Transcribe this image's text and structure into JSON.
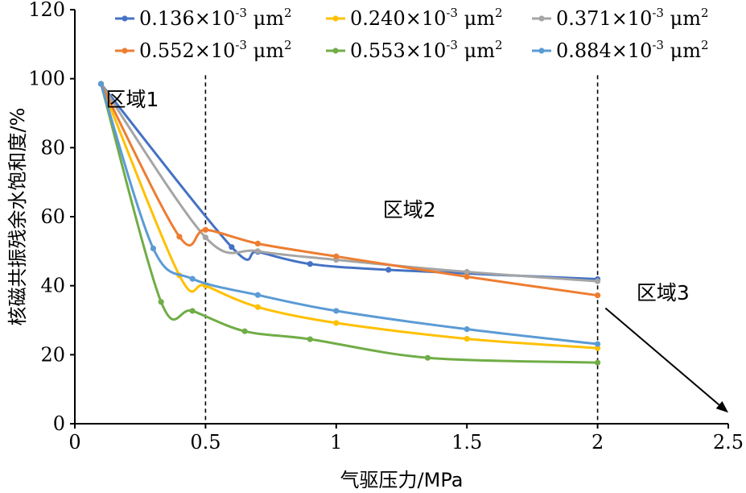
{
  "chart_data": {
    "type": "line",
    "xlabel": "气驱压力/MPa",
    "ylabel": "核磁共振残余水饱和度/%",
    "xlim": [
      0,
      2.5
    ],
    "ylim": [
      0,
      120
    ],
    "xticks": [
      0,
      0.5,
      1,
      1.5,
      2,
      2.5
    ],
    "xtick_labels": [
      "0",
      "0.5",
      "1",
      "1.5",
      "2",
      "2.5"
    ],
    "yticks": [
      0,
      20,
      40,
      60,
      80,
      100,
      120
    ],
    "ytick_labels": [
      "0",
      "20",
      "40",
      "60",
      "80",
      "100",
      "120"
    ],
    "legend_position": "top",
    "grid": false,
    "series": [
      {
        "name": "0.136×10-3 μm2",
        "base": "0.136×10",
        "exp": "-3",
        "unit": "μm",
        "unit_exp": "2",
        "color": "#4472c4",
        "x": [
          0.1,
          0.6,
          0.7,
          0.9,
          1.2,
          2.0
        ],
        "y": [
          98.5,
          51.2,
          49.8,
          46.3,
          44.6,
          41.9
        ]
      },
      {
        "name": "0.240×10-3 μm2",
        "base": "0.240×10",
        "exp": "-3",
        "unit": "μm",
        "unit_exp": "2",
        "color": "#ffc000",
        "x": [
          0.1,
          0.4,
          0.5,
          0.7,
          1.0,
          1.5,
          2.0
        ],
        "y": [
          98.5,
          43.0,
          40.0,
          33.8,
          29.2,
          24.6,
          21.9
        ]
      },
      {
        "name": "0.371×10-3 μm2",
        "base": "0.371×10",
        "exp": "-3",
        "unit": "μm",
        "unit_exp": "2",
        "color": "#a5a5a5",
        "x": [
          0.1,
          0.5,
          0.7,
          1.0,
          1.5,
          2.0
        ],
        "y": [
          98.5,
          54.0,
          50.0,
          47.5,
          44.0,
          41.3
        ]
      },
      {
        "name": "0.552×10-3 μm2",
        "base": "0.552×10",
        "exp": "-3",
        "unit": "μm",
        "unit_exp": "2",
        "color": "#ed7d31",
        "x": [
          0.1,
          0.4,
          0.5,
          0.7,
          1.0,
          1.5,
          2.0
        ],
        "y": [
          98.5,
          54.2,
          56.2,
          52.2,
          48.5,
          42.6,
          37.2
        ]
      },
      {
        "name": "0.553×10-3 μm2",
        "base": "0.553×10",
        "exp": "-3",
        "unit": "μm",
        "unit_exp": "2",
        "color": "#70ad47",
        "x": [
          0.1,
          0.33,
          0.45,
          0.65,
          0.9,
          1.35,
          2.0
        ],
        "y": [
          98.5,
          35.3,
          32.7,
          26.8,
          24.5,
          19.1,
          17.7
        ]
      },
      {
        "name": "0.884×10-3 μm2",
        "base": "0.884×10",
        "exp": "-3",
        "unit": "μm",
        "unit_exp": "2",
        "color": "#5b9bd5",
        "x": [
          0.1,
          0.3,
          0.45,
          0.7,
          1.0,
          1.5,
          2.0
        ],
        "y": [
          98.5,
          50.8,
          42.0,
          37.3,
          32.7,
          27.4,
          23.1
        ]
      }
    ],
    "region_dividers_x": [
      0.5,
      2.0
    ],
    "annotations": [
      {
        "text": "区域1",
        "x": 0.22,
        "y": 92
      },
      {
        "text": "区域2",
        "x": 1.28,
        "y": 60
      },
      {
        "text": "区域3",
        "x": 2.25,
        "y": 36
      }
    ],
    "arrow": {
      "from": [
        2.03,
        33.5
      ],
      "to": [
        2.5,
        3.2
      ]
    }
  }
}
